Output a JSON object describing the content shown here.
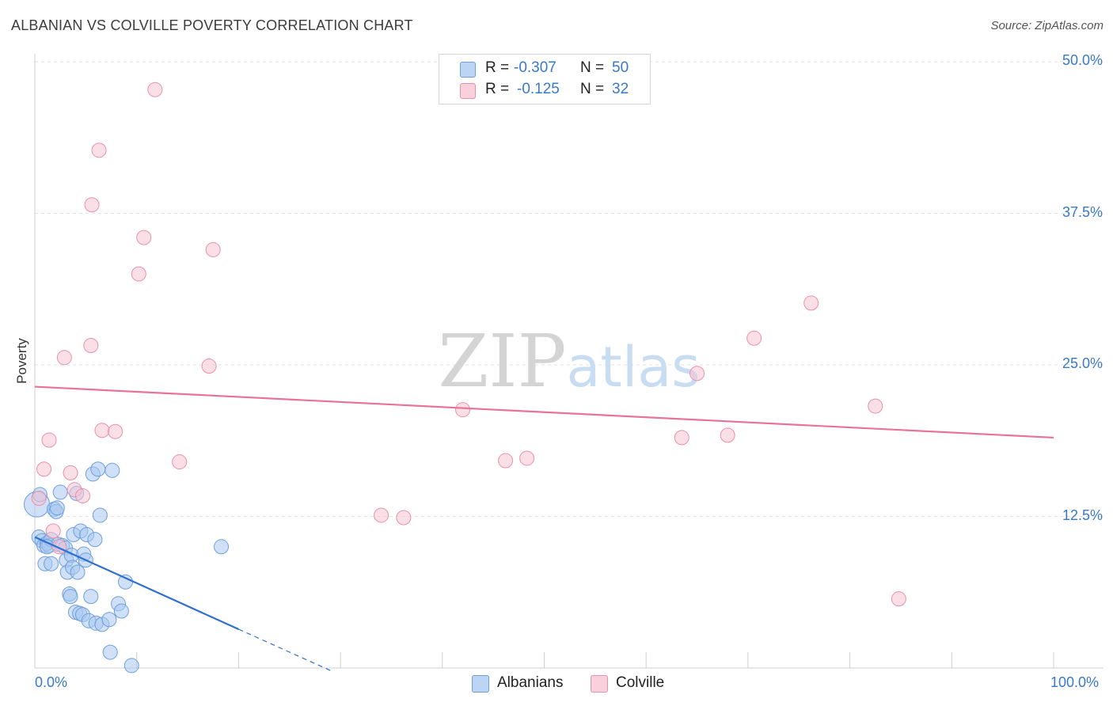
{
  "chart_data": {
    "type": "scatter",
    "title": "ALBANIAN VS COLVILLE POVERTY CORRELATION CHART",
    "source": "Source: ZipAtlas.com",
    "xlabel": "",
    "ylabel": "Poverty",
    "xlim": [
      0,
      100
    ],
    "ylim": [
      0,
      50
    ],
    "x_tick_labels": [
      "0.0%",
      "100.0%"
    ],
    "y_ticks": [
      12.5,
      25.0,
      37.5,
      50.0
    ],
    "y_tick_labels": [
      "12.5%",
      "25.0%",
      "37.5%",
      "50.0%"
    ],
    "grid": true,
    "watermark": "ZIPatlas",
    "legend": {
      "entries": [
        {
          "r_label": "R =",
          "r_value": "-0.307",
          "n_label": "N =",
          "n_value": "50"
        },
        {
          "r_label": "R =",
          "r_value": "-0.125",
          "n_label": "N =",
          "n_value": "32"
        }
      ]
    },
    "series": [
      {
        "name": "Albanians",
        "color": "#a9c8f0",
        "edge": "#6e9fdc",
        "line_color": "#2f6fd0",
        "trend": {
          "x0": 0,
          "y0": 10.8,
          "x1": 20,
          "y1": 3.2,
          "dash_to_x": 29,
          "dash_to_y": -0.2
        },
        "points": [
          [
            0.2,
            13.5
          ],
          [
            0.5,
            14.3
          ],
          [
            0.4,
            10.8
          ],
          [
            0.7,
            10.5
          ],
          [
            0.9,
            10.1
          ],
          [
            1.0,
            8.6
          ],
          [
            1.2,
            10.3
          ],
          [
            1.4,
            10.1
          ],
          [
            1.6,
            10.6
          ],
          [
            1.6,
            8.6
          ],
          [
            1.9,
            13.1
          ],
          [
            2.1,
            12.9
          ],
          [
            2.2,
            13.2
          ],
          [
            2.3,
            10.2
          ],
          [
            2.5,
            14.5
          ],
          [
            2.7,
            10.1
          ],
          [
            3.0,
            9.9
          ],
          [
            3.1,
            8.9
          ],
          [
            3.2,
            7.9
          ],
          [
            3.4,
            6.1
          ],
          [
            3.5,
            5.9
          ],
          [
            3.6,
            9.3
          ],
          [
            3.7,
            8.3
          ],
          [
            3.8,
            11.0
          ],
          [
            4.0,
            4.6
          ],
          [
            4.1,
            14.4
          ],
          [
            4.2,
            7.9
          ],
          [
            4.4,
            4.5
          ],
          [
            4.5,
            11.3
          ],
          [
            4.7,
            4.4
          ],
          [
            4.8,
            9.4
          ],
          [
            5.0,
            8.9
          ],
          [
            5.1,
            11.0
          ],
          [
            5.3,
            3.9
          ],
          [
            5.5,
            5.9
          ],
          [
            5.7,
            16.0
          ],
          [
            5.9,
            10.6
          ],
          [
            6.0,
            3.7
          ],
          [
            6.2,
            16.4
          ],
          [
            6.4,
            12.6
          ],
          [
            6.6,
            3.6
          ],
          [
            7.3,
            4.0
          ],
          [
            7.4,
            1.3
          ],
          [
            7.6,
            16.3
          ],
          [
            8.2,
            5.3
          ],
          [
            8.5,
            4.7
          ],
          [
            8.9,
            7.1
          ],
          [
            9.5,
            0.2
          ],
          [
            18.3,
            10.0
          ],
          [
            1.2,
            10.0
          ]
        ]
      },
      {
        "name": "Colville",
        "color": "#f7c4d3",
        "edge": "#e890ab",
        "line_color": "#e8739a",
        "trend": {
          "x0": 0,
          "y0": 23.2,
          "x1": 100,
          "y1": 19.0
        },
        "points": [
          [
            0.4,
            14.0
          ],
          [
            0.9,
            16.4
          ],
          [
            1.4,
            18.8
          ],
          [
            1.8,
            11.3
          ],
          [
            2.4,
            10.0
          ],
          [
            2.9,
            25.6
          ],
          [
            3.5,
            16.1
          ],
          [
            3.9,
            14.7
          ],
          [
            4.7,
            14.2
          ],
          [
            5.5,
            26.6
          ],
          [
            5.6,
            38.2
          ],
          [
            6.3,
            42.7
          ],
          [
            6.6,
            19.6
          ],
          [
            7.9,
            19.5
          ],
          [
            10.2,
            32.5
          ],
          [
            10.7,
            35.5
          ],
          [
            11.8,
            47.7
          ],
          [
            14.2,
            17.0
          ],
          [
            17.1,
            24.9
          ],
          [
            17.5,
            34.5
          ],
          [
            34.0,
            12.6
          ],
          [
            36.2,
            12.4
          ],
          [
            42.0,
            21.3
          ],
          [
            46.2,
            17.1
          ],
          [
            48.3,
            17.3
          ],
          [
            63.5,
            19.0
          ],
          [
            65.0,
            24.3
          ],
          [
            68.0,
            19.2
          ],
          [
            70.6,
            27.2
          ],
          [
            76.2,
            30.1
          ],
          [
            82.5,
            21.6
          ],
          [
            84.8,
            5.7
          ]
        ]
      }
    ]
  }
}
